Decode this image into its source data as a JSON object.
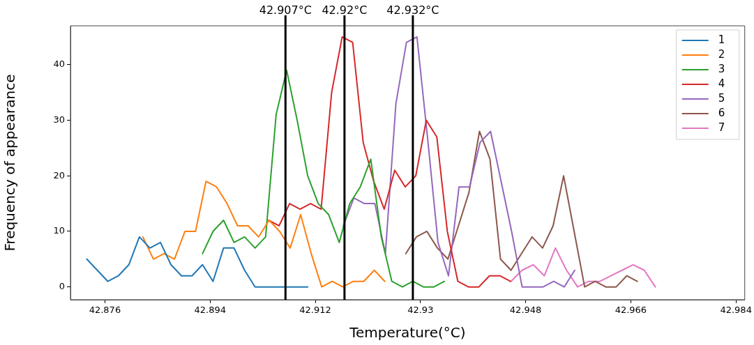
{
  "chart_data": {
    "type": "line",
    "xlabel": "Temperature(°C)",
    "ylabel": "Frequency of appearance",
    "xlim": [
      42.8701,
      42.9855
    ],
    "ylim": [
      -2.3,
      47
    ],
    "xticks": [
      42.876,
      42.894,
      42.912,
      42.93,
      42.948,
      42.966,
      42.984
    ],
    "yticks": [
      0,
      10,
      20,
      30,
      40
    ],
    "grid": false,
    "legend": "top right",
    "marker": "none",
    "line_style": "solid",
    "series": [
      {
        "name": "1",
        "color": "#1f77b4",
        "x": [
          42.8729,
          42.8747,
          42.8765,
          42.8783,
          42.8801,
          42.8819,
          42.8837,
          42.8855,
          42.8873,
          42.8891,
          42.8909,
          42.8927,
          42.8945,
          42.8963,
          42.8981,
          42.8999,
          42.9017,
          42.9035,
          42.9053,
          42.9071,
          42.9089,
          42.9107
        ],
        "values": [
          5,
          3,
          1,
          2,
          4,
          9,
          7,
          8,
          4,
          2,
          2,
          4,
          1,
          7,
          7,
          3,
          0,
          0,
          0,
          0,
          0,
          0
        ]
      },
      {
        "name": "2",
        "color": "#ff7f0e",
        "x": [
          42.8825,
          42.8843,
          42.8861,
          42.8879,
          42.8897,
          42.8915,
          42.8933,
          42.8951,
          42.8969,
          42.8987,
          42.9005,
          42.9023,
          42.9041,
          42.9059,
          42.9077,
          42.9095,
          42.9113,
          42.9131,
          42.9149,
          42.9167,
          42.9185,
          42.9203,
          42.9221,
          42.9239
        ],
        "values": [
          9,
          5,
          6,
          5,
          10,
          10,
          19,
          18,
          15,
          11,
          11,
          9,
          12,
          10,
          7,
          13,
          6,
          0,
          1,
          0,
          1,
          1,
          3,
          1
        ]
      },
      {
        "name": "3",
        "color": "#2ca02c",
        "x": [
          42.8927,
          42.8945,
          42.8963,
          42.8981,
          42.8999,
          42.9017,
          42.9035,
          42.9053,
          42.9071,
          42.9089,
          42.9107,
          42.9125,
          42.9143,
          42.9161,
          42.9179,
          42.9197,
          42.9215,
          42.9233,
          42.9251,
          42.9269,
          42.9287,
          42.9305,
          42.9323,
          42.9341
        ],
        "values": [
          6,
          10,
          12,
          8,
          9,
          7,
          9,
          31,
          39,
          30,
          20,
          15,
          13,
          8,
          15,
          18,
          23,
          9,
          1,
          0,
          1,
          0,
          0,
          1
        ]
      },
      {
        "name": "4",
        "color": "#d62728",
        "x": [
          42.904,
          42.9058,
          42.9076,
          42.9094,
          42.9112,
          42.913,
          42.9148,
          42.9166,
          42.9184,
          42.9202,
          42.922,
          42.9238,
          42.9256,
          42.9274,
          42.9292,
          42.931,
          42.9328,
          42.9346,
          42.9364,
          42.9382,
          42.94,
          42.9418,
          42.9436,
          42.9454
        ],
        "values": [
          12,
          11,
          15,
          14,
          15,
          14,
          35,
          45,
          44,
          26,
          19,
          14,
          21,
          18,
          20,
          30,
          27,
          10,
          1,
          0,
          0,
          2,
          2,
          1
        ]
      },
      {
        "name": "5",
        "color": "#9467bd",
        "x": [
          42.9168,
          42.9186,
          42.9204,
          42.9222,
          42.924,
          42.9258,
          42.9276,
          42.9294,
          42.9312,
          42.933,
          42.9348,
          42.9366,
          42.9384,
          42.9402,
          42.942,
          42.9438,
          42.9456,
          42.9474,
          42.9492,
          42.951,
          42.9528,
          42.9546,
          42.9564
        ],
        "values": [
          11,
          16,
          15,
          15,
          6,
          33,
          44,
          45,
          27,
          8,
          2,
          18,
          18,
          26,
          28,
          19,
          10,
          0,
          0,
          0,
          1,
          0,
          3
        ]
      },
      {
        "name": "6",
        "color": "#8c564b",
        "x": [
          42.9275,
          42.9293,
          42.9311,
          42.9329,
          42.9347,
          42.9365,
          42.9383,
          42.9401,
          42.9419,
          42.9437,
          42.9455,
          42.9473,
          42.9491,
          42.9509,
          42.9527,
          42.9545,
          42.9563,
          42.9581,
          42.9599,
          42.9617,
          42.9635,
          42.9653,
          42.9671
        ],
        "values": [
          6,
          9,
          10,
          7,
          5,
          11,
          17,
          28,
          23,
          5,
          3,
          6,
          9,
          7,
          11,
          20,
          10,
          0,
          1,
          0,
          0,
          2,
          1
        ]
      },
      {
        "name": "7",
        "color": "#e377c2",
        "x": [
          42.9455,
          42.9474,
          42.9493,
          42.9512,
          42.9531,
          42.955,
          42.9569,
          42.9588,
          42.9607,
          42.9626,
          42.9645,
          42.9664,
          42.9683,
          42.9702
        ],
        "values": [
          1,
          3,
          4,
          2,
          7,
          3,
          0,
          1,
          1,
          2,
          3,
          4,
          3,
          0
        ]
      }
    ],
    "ref_lines": [
      {
        "axis": "x",
        "value": 42.9069,
        "label": "42.907°C",
        "color": "#000000"
      },
      {
        "axis": "x",
        "value": 42.917,
        "label": "42.92°C",
        "color": "#000000"
      },
      {
        "axis": "x",
        "value": 42.9287,
        "label": "42.932°C",
        "color": "#000000"
      }
    ]
  }
}
